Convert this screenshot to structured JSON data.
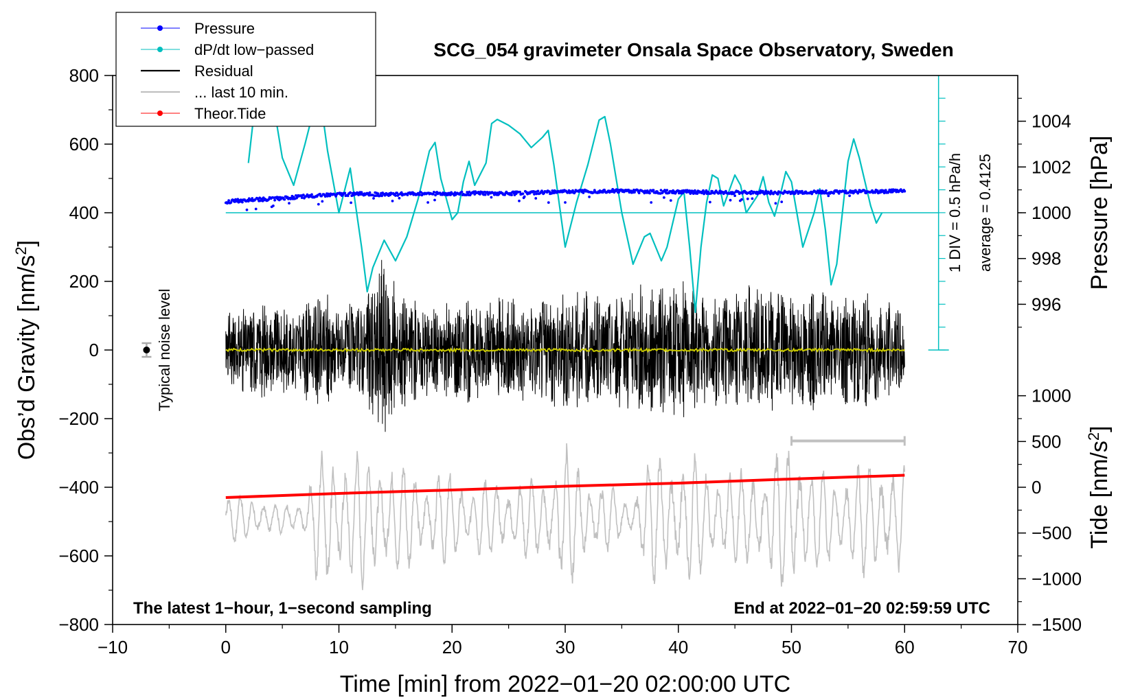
{
  "chart_data": {
    "type": "line",
    "title": "SCG_054 gravimeter Onsala Space Observatory, Sweden",
    "xlabel": "Time [min] from 2022−01−20 02:00:00 UTC",
    "ylabel_left_main": "Obs’d Gravity [nm/s",
    "ylabel_left_sup": "2",
    "ylabel_left_end": "]",
    "ylabel_right_top": "Pressure [hPa]",
    "ylabel_right_bottom_main": "Tide [nm/s",
    "ylabel_right_bottom_sup": "2",
    "ylabel_right_bottom_end": "]",
    "footer_left": "The latest 1−hour, 1−second sampling",
    "footer_right": "End at 2022−01−20 02:59:59 UTC",
    "noise_label": "Typical noise level",
    "xlim": [
      -10,
      70
    ],
    "ylim": [
      -800,
      800
    ],
    "x_ticks": [
      {
        "value": -10,
        "label": "−10"
      },
      {
        "value": 0,
        "label": "0"
      },
      {
        "value": 10,
        "label": "10"
      },
      {
        "value": 20,
        "label": "20"
      },
      {
        "value": 30,
        "label": "30"
      },
      {
        "value": 40,
        "label": "40"
      },
      {
        "value": 50,
        "label": "50"
      },
      {
        "value": 60,
        "label": "60"
      },
      {
        "value": 70,
        "label": "70"
      }
    ],
    "y_ticks": [
      {
        "value": 800,
        "label": "800"
      },
      {
        "value": 600,
        "label": "600"
      },
      {
        "value": 400,
        "label": "400"
      },
      {
        "value": 200,
        "label": "200"
      },
      {
        "value": 0,
        "label": "0"
      },
      {
        "value": -200,
        "label": "−200"
      },
      {
        "value": -400,
        "label": "−400"
      },
      {
        "value": -600,
        "label": "−600"
      },
      {
        "value": -800,
        "label": "−800"
      }
    ],
    "pressure_axis": {
      "ticks": [
        {
          "value": 1004,
          "label": "1004"
        },
        {
          "value": 1002,
          "label": "1002"
        },
        {
          "value": 1000,
          "label": "1000"
        },
        {
          "value": 998,
          "label": "998"
        },
        {
          "value": 996,
          "label": "996"
        }
      ],
      "gravity_per_hPa": 66.7,
      "ref_hPa": 1000,
      "ref_gravity": 400
    },
    "tide_axis": {
      "ticks": [
        {
          "value": 1000,
          "label": "1000"
        },
        {
          "value": 500,
          "label": "500"
        },
        {
          "value": 0,
          "label": "0"
        },
        {
          "value": -500,
          "label": "−500"
        },
        {
          "value": -1000,
          "label": "−1000"
        },
        {
          "value": -1500,
          "label": "−1500"
        }
      ],
      "gravity_per_nms2": 0.2667,
      "ref_tide": 0,
      "ref_gravity": -400
    },
    "dpdt_scale": {
      "x": 63,
      "y_range": [
        0,
        800
      ],
      "baseline": 400,
      "label_1": "1 DIV = 0.5 hPa/h",
      "label_2": "average = 0.4125"
    },
    "last10_bar": {
      "x_range": [
        50,
        60
      ],
      "y": -265
    },
    "noise_marker": {
      "x": -7,
      "y": 0,
      "err": 20
    },
    "series": [
      {
        "name": "Pressure",
        "color": "#0000ff",
        "style": "dots",
        "points": [
          [
            0,
            432
          ],
          [
            2,
            437
          ],
          [
            4,
            440
          ],
          [
            6,
            445
          ],
          [
            8,
            450
          ],
          [
            10,
            453
          ],
          [
            12,
            455
          ],
          [
            14,
            453
          ],
          [
            16,
            455
          ],
          [
            18,
            456
          ],
          [
            20,
            455
          ],
          [
            22,
            457
          ],
          [
            24,
            456
          ],
          [
            26,
            457
          ],
          [
            28,
            459
          ],
          [
            30,
            462
          ],
          [
            32,
            462
          ],
          [
            34,
            464
          ],
          [
            36,
            463
          ],
          [
            38,
            461
          ],
          [
            40,
            461
          ],
          [
            42,
            460
          ],
          [
            44,
            459
          ],
          [
            46,
            460
          ],
          [
            48,
            459
          ],
          [
            50,
            459
          ],
          [
            52,
            460
          ],
          [
            54,
            461
          ],
          [
            56,
            461
          ],
          [
            58,
            462
          ],
          [
            60,
            464
          ]
        ]
      },
      {
        "name": "dP/dt low−passed",
        "color": "#00bfbf",
        "style": "line",
        "points": [
          [
            2,
            545
          ],
          [
            2.5,
            690
          ],
          [
            3,
            790
          ],
          [
            3.5,
            830
          ],
          [
            4,
            760
          ],
          [
            5,
            560
          ],
          [
            6,
            480
          ],
          [
            7,
            600
          ],
          [
            8,
            730
          ],
          [
            8.5,
            700
          ],
          [
            9,
            580
          ],
          [
            10,
            400
          ],
          [
            11,
            530
          ],
          [
            12,
            300
          ],
          [
            12.5,
            170
          ],
          [
            13,
            240
          ],
          [
            14,
            320
          ],
          [
            15,
            260
          ],
          [
            16,
            330
          ],
          [
            17,
            440
          ],
          [
            18,
            580
          ],
          [
            18.5,
            605
          ],
          [
            19,
            500
          ],
          [
            20,
            380
          ],
          [
            20.5,
            400
          ],
          [
            21,
            490
          ],
          [
            21.5,
            550
          ],
          [
            22,
            480
          ],
          [
            23,
            545
          ],
          [
            23.5,
            660
          ],
          [
            24,
            672
          ],
          [
            25,
            655
          ],
          [
            26,
            630
          ],
          [
            27,
            590
          ],
          [
            28,
            620
          ],
          [
            28.5,
            640
          ],
          [
            29,
            540
          ],
          [
            30,
            300
          ],
          [
            31,
            430
          ],
          [
            32,
            540
          ],
          [
            33,
            670
          ],
          [
            33.5,
            680
          ],
          [
            34,
            600
          ],
          [
            35,
            400
          ],
          [
            36,
            250
          ],
          [
            37,
            330
          ],
          [
            37.5,
            340
          ],
          [
            38,
            300
          ],
          [
            38.5,
            260
          ],
          [
            39,
            300
          ],
          [
            40,
            440
          ],
          [
            40.5,
            460
          ],
          [
            41,
            300
          ],
          [
            41.5,
            110
          ],
          [
            42,
            300
          ],
          [
            42.5,
            430
          ],
          [
            43,
            510
          ],
          [
            43.5,
            500
          ],
          [
            44,
            420
          ],
          [
            45,
            510
          ],
          [
            45.5,
            480
          ],
          [
            46,
            400
          ],
          [
            47,
            450
          ],
          [
            47.5,
            505
          ],
          [
            48,
            430
          ],
          [
            48.5,
            390
          ],
          [
            49,
            450
          ],
          [
            49.5,
            520
          ],
          [
            50,
            490
          ],
          [
            51,
            300
          ],
          [
            52,
            400
          ],
          [
            52.5,
            470
          ],
          [
            53,
            350
          ],
          [
            53.5,
            190
          ],
          [
            54,
            250
          ],
          [
            54.5,
            400
          ],
          [
            55,
            550
          ],
          [
            55.5,
            615
          ],
          [
            56,
            560
          ],
          [
            57,
            420
          ],
          [
            57.5,
            370
          ],
          [
            58,
            400
          ]
        ]
      },
      {
        "name": "Residual",
        "color": "#000000",
        "style": "noise",
        "x_range": [
          0,
          60
        ],
        "envelope": [
          [
            0,
            110
          ],
          [
            3,
            150
          ],
          [
            6,
            130
          ],
          [
            8,
            160
          ],
          [
            9,
            180
          ],
          [
            10,
            130
          ],
          [
            12,
            140
          ],
          [
            13,
            240
          ],
          [
            14,
            320
          ],
          [
            15,
            190
          ],
          [
            17,
            150
          ],
          [
            19,
            130
          ],
          [
            21,
            160
          ],
          [
            23,
            140
          ],
          [
            25,
            170
          ],
          [
            27,
            150
          ],
          [
            30,
            190
          ],
          [
            32,
            170
          ],
          [
            34,
            160
          ],
          [
            36,
            200
          ],
          [
            38,
            180
          ],
          [
            40,
            210
          ],
          [
            42,
            170
          ],
          [
            44,
            160
          ],
          [
            46,
            190
          ],
          [
            48,
            210
          ],
          [
            50,
            170
          ],
          [
            52,
            180
          ],
          [
            54,
            160
          ],
          [
            56,
            180
          ],
          [
            58,
            150
          ],
          [
            60,
            130
          ]
        ]
      },
      {
        "name": "... last 10 min.",
        "color": "#c0c0c0",
        "style": "oscillation",
        "x_range": [
          0,
          60
        ],
        "center": -490,
        "envelope": [
          [
            0,
            60
          ],
          [
            2,
            70
          ],
          [
            4,
            40
          ],
          [
            6,
            45
          ],
          [
            7,
            60
          ],
          [
            8,
            170
          ],
          [
            10,
            200
          ],
          [
            12,
            180
          ],
          [
            14,
            170
          ],
          [
            16,
            140
          ],
          [
            18,
            120
          ],
          [
            20,
            120
          ],
          [
            22,
            110
          ],
          [
            24,
            100
          ],
          [
            26,
            100
          ],
          [
            28,
            120
          ],
          [
            30,
            200
          ],
          [
            31,
            150
          ],
          [
            32,
            120
          ],
          [
            34,
            90
          ],
          [
            35,
            50
          ],
          [
            36,
            60
          ],
          [
            37,
            160
          ],
          [
            40,
            190
          ],
          [
            42,
            160
          ],
          [
            44,
            130
          ],
          [
            46,
            140
          ],
          [
            48,
            160
          ],
          [
            50,
            220
          ],
          [
            52,
            150
          ],
          [
            54,
            130
          ],
          [
            56,
            150
          ],
          [
            58,
            160
          ],
          [
            60,
            150
          ]
        ]
      },
      {
        "name": "Theor.Tide",
        "color": "#ff0000",
        "style": "line-dots",
        "points": [
          [
            0,
            -430
          ],
          [
            10,
            -418
          ],
          [
            20,
            -408
          ],
          [
            30,
            -397
          ],
          [
            40,
            -388
          ],
          [
            50,
            -376
          ],
          [
            60,
            -365
          ]
        ]
      }
    ],
    "yellow_trace": {
      "color": "#cccc00",
      "y": 0
    },
    "legend": [
      {
        "label": "Pressure",
        "color": "#0000ff",
        "marker": true,
        "width": 1
      },
      {
        "label": "dP/dt low−passed",
        "color": "#00bfbf",
        "marker": true,
        "width": 1
      },
      {
        "label": "Residual",
        "color": "#000000",
        "marker": false,
        "width": 2.2
      },
      {
        "label": "... last 10 min.",
        "color": "#c0c0c0",
        "marker": false,
        "width": 2.2
      },
      {
        "label": "Theor.Tide",
        "color": "#ff0000",
        "marker": true,
        "width": 1
      }
    ]
  }
}
